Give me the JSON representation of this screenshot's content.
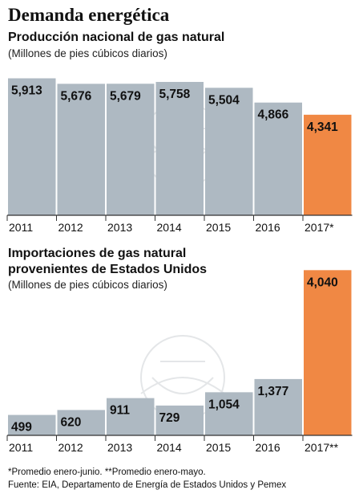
{
  "title": "Demanda energética",
  "footnote": "*Promedio enero-junio. **Promedio enero-mayo.",
  "source": "Fuente: EIA, Departamento de Energía de Estados Unidos y Pemex",
  "colors": {
    "bar": "#aeb9c2",
    "highlight": "#f08844",
    "axis": "#333333"
  },
  "chart_data": [
    {
      "type": "bar",
      "title": "Producción nacional de gas natural",
      "subtitle": "(Millones de pies cúbicos diarios)",
      "categories": [
        "2011",
        "2012",
        "2013",
        "2014",
        "2015",
        "2016",
        "2017*"
      ],
      "values": [
        5913,
        5676,
        5679,
        5758,
        5504,
        4866,
        4341
      ],
      "labels": [
        "5,913",
        "5,676",
        "5,679",
        "5,758",
        "5,504",
        "4,866",
        "4,341"
      ],
      "highlight_index": 6,
      "ylim": [
        0,
        6000
      ]
    },
    {
      "type": "bar",
      "title": "Importaciones de gas natural provenientes de Estados Unidos",
      "subtitle": "(Millones de pies cúbicos diarios)",
      "categories": [
        "2011",
        "2012",
        "2013",
        "2014",
        "2015",
        "2016",
        "2017**"
      ],
      "values": [
        499,
        620,
        911,
        729,
        1054,
        1377,
        4040
      ],
      "labels": [
        "499",
        "620",
        "911",
        "729",
        "1,054",
        "1,377",
        "4,040"
      ],
      "highlight_index": 6,
      "ylim": [
        0,
        4400
      ]
    }
  ]
}
